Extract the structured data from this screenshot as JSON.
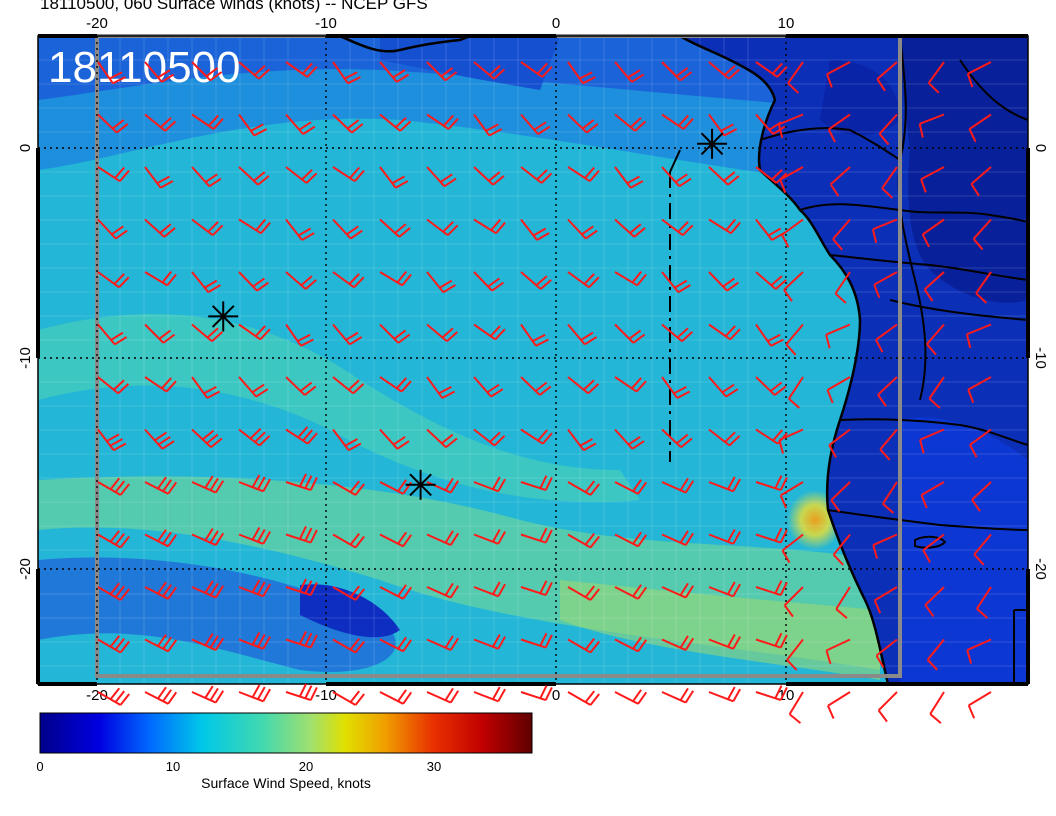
{
  "title": "18110500, 060 Surface winds (knots) -- NCEP GFS",
  "stamp": "18110500",
  "axes": {
    "lon_ticks": [
      "-20",
      "-10",
      "0",
      "10"
    ],
    "lat_ticks": [
      "0",
      "-10",
      "-20"
    ]
  },
  "colorbar": {
    "label": "Surface Wind Speed, knots",
    "ticks": [
      "0",
      "10",
      "20",
      "30"
    ],
    "range": [
      0,
      37
    ]
  },
  "markers": {
    "icon": "star-asterisk-icon",
    "points": [
      {
        "lon": 6.8,
        "lat": 0.2
      },
      {
        "lon": -14.5,
        "lat": -8.0
      },
      {
        "lon": -5.9,
        "lat": -16.0
      }
    ]
  },
  "colors": {
    "barb": "#ff1a1a",
    "land": "#0a2ab4",
    "ocean": "#22b8d8",
    "coast": "#000000",
    "frame": "#8a8a8a"
  }
}
